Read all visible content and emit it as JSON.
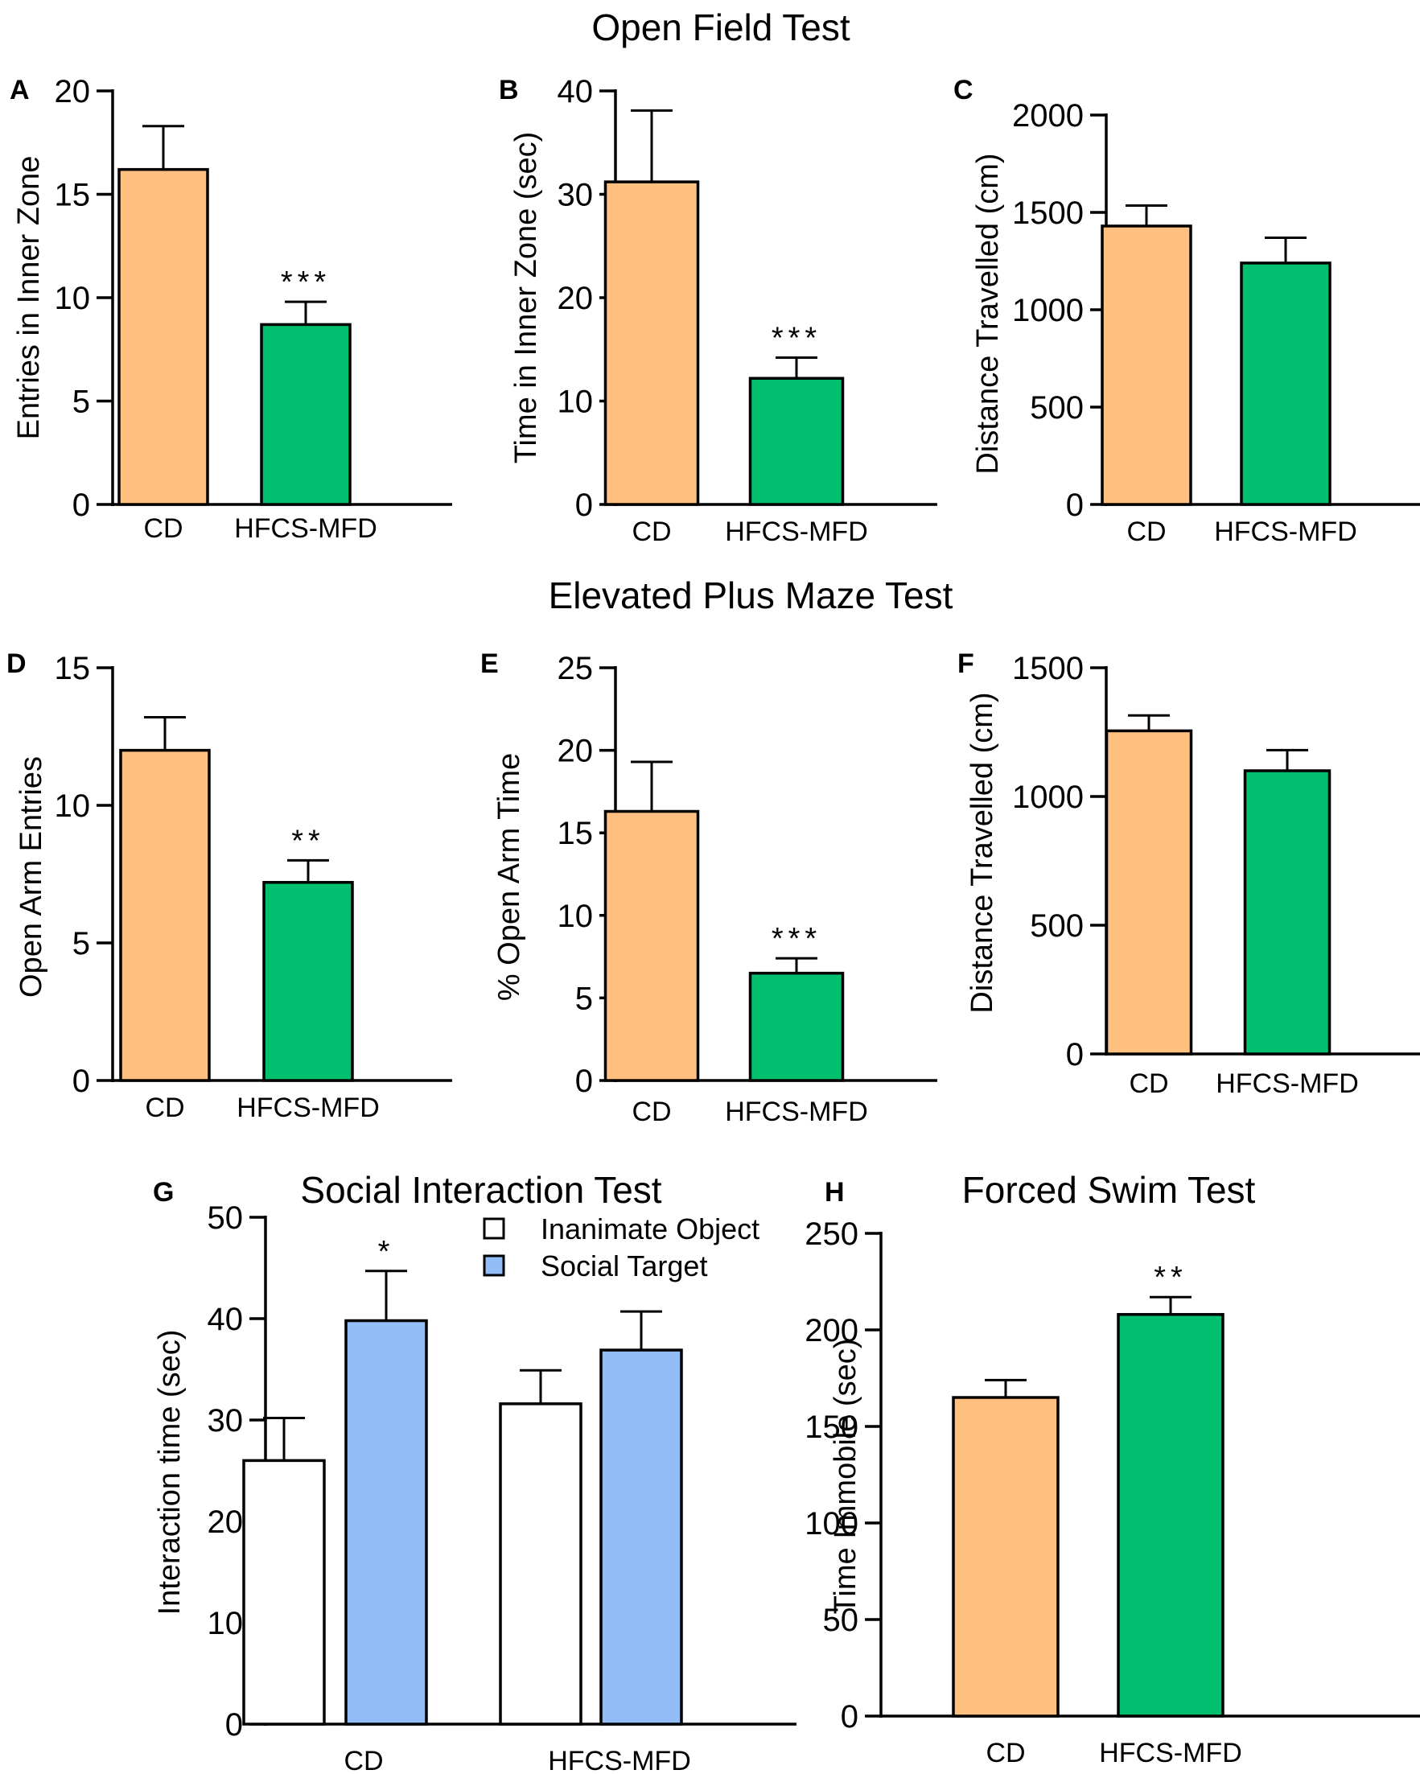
{
  "figure": {
    "section_titles": {
      "open_field": "Open Field Test",
      "elevated_plus_maze": "Elevated Plus Maze Test"
    }
  },
  "chart_data": [
    {
      "id": "A",
      "panel": "A",
      "type": "bar",
      "categories": [
        "CD",
        "HFCS-MFD"
      ],
      "values": [
        16.2,
        8.7
      ],
      "errors": [
        2.1,
        1.1
      ],
      "significance": [
        "",
        "***"
      ],
      "colors": [
        "#FFC080",
        "#00C070"
      ],
      "title": "",
      "xlabel": "",
      "ylabel": "Entries in Inner Zone",
      "ylim": [
        0,
        20
      ],
      "yticks": [
        0,
        5,
        10,
        15,
        20
      ]
    },
    {
      "id": "B",
      "panel": "B",
      "type": "bar",
      "categories": [
        "CD",
        "HFCS-MFD"
      ],
      "values": [
        31.2,
        12.2
      ],
      "errors": [
        6.9,
        2.0
      ],
      "significance": [
        "",
        "***"
      ],
      "colors": [
        "#FFC080",
        "#00C070"
      ],
      "title": "",
      "xlabel": "",
      "ylabel": "Time in Inner Zone (sec)",
      "ylim": [
        0,
        40
      ],
      "yticks": [
        0,
        10,
        20,
        30,
        40
      ]
    },
    {
      "id": "C",
      "panel": "C",
      "type": "bar",
      "categories": [
        "CD",
        "HFCS-MFD"
      ],
      "values": [
        1430,
        1240
      ],
      "errors": [
        105,
        130
      ],
      "significance": [
        "",
        ""
      ],
      "colors": [
        "#FFC080",
        "#00C070"
      ],
      "title": "",
      "xlabel": "",
      "ylabel": "Distance Travelled (cm)",
      "ylim": [
        0,
        2000
      ],
      "yticks": [
        0,
        500,
        1000,
        1500,
        2000
      ]
    },
    {
      "id": "D",
      "panel": "D",
      "type": "bar",
      "categories": [
        "CD",
        "HFCS-MFD"
      ],
      "values": [
        12.0,
        7.2
      ],
      "errors": [
        1.2,
        0.8
      ],
      "significance": [
        "",
        "**"
      ],
      "colors": [
        "#FFC080",
        "#00C070"
      ],
      "title": "",
      "xlabel": "",
      "ylabel": "Open Arm Entries",
      "ylim": [
        0,
        15
      ],
      "yticks": [
        0,
        5,
        10,
        15
      ]
    },
    {
      "id": "E",
      "panel": "E",
      "type": "bar",
      "categories": [
        "CD",
        "HFCS-MFD"
      ],
      "values": [
        16.3,
        6.5
      ],
      "errors": [
        3.0,
        0.9
      ],
      "significance": [
        "",
        "***"
      ],
      "colors": [
        "#FFC080",
        "#00C070"
      ],
      "title": "",
      "xlabel": "",
      "ylabel": "% Open Arm Time",
      "ylim": [
        0,
        25
      ],
      "yticks": [
        0,
        5,
        10,
        15,
        20,
        25
      ]
    },
    {
      "id": "F",
      "panel": "F",
      "type": "bar",
      "categories": [
        "CD",
        "HFCS-MFD"
      ],
      "values": [
        1255,
        1100
      ],
      "errors": [
        60,
        80
      ],
      "significance": [
        "",
        ""
      ],
      "colors": [
        "#FFC080",
        "#00C070"
      ],
      "title": "",
      "xlabel": "",
      "ylabel": "Distance Travelled (cm)",
      "ylim": [
        0,
        1500
      ],
      "yticks": [
        0,
        500,
        1000,
        1500
      ]
    },
    {
      "id": "G",
      "panel": "G",
      "type": "bar",
      "title": "Social Interaction Test",
      "categories": [
        "CD",
        "HFCS-MFD"
      ],
      "series": [
        {
          "name": "Inanimate Object",
          "color": "#FFFFFF",
          "values": [
            26.0,
            31.6
          ],
          "errors": [
            4.2,
            3.3
          ],
          "significance": [
            "",
            ""
          ]
        },
        {
          "name": "Social Target",
          "color": "#92BDF7",
          "values": [
            39.8,
            36.9
          ],
          "errors": [
            4.9,
            3.8
          ],
          "significance": [
            "*",
            ""
          ]
        }
      ],
      "xlabel": "",
      "ylabel": "Interaction time (sec)",
      "ylim": [
        0,
        50
      ],
      "yticks": [
        0,
        10,
        20,
        30,
        40,
        50
      ],
      "legend": "top-right"
    },
    {
      "id": "H",
      "panel": "H",
      "type": "bar",
      "title": "Forced Swim Test",
      "categories": [
        "CD",
        "HFCS-MFD"
      ],
      "values": [
        165,
        208
      ],
      "errors": [
        9,
        9
      ],
      "significance": [
        "",
        "**"
      ],
      "colors": [
        "#FFC080",
        "#00C070"
      ],
      "xlabel": "",
      "ylabel": "Time Immobile (sec)",
      "ylim": [
        0,
        250
      ],
      "yticks": [
        0,
        50,
        100,
        150,
        200,
        250
      ]
    }
  ]
}
